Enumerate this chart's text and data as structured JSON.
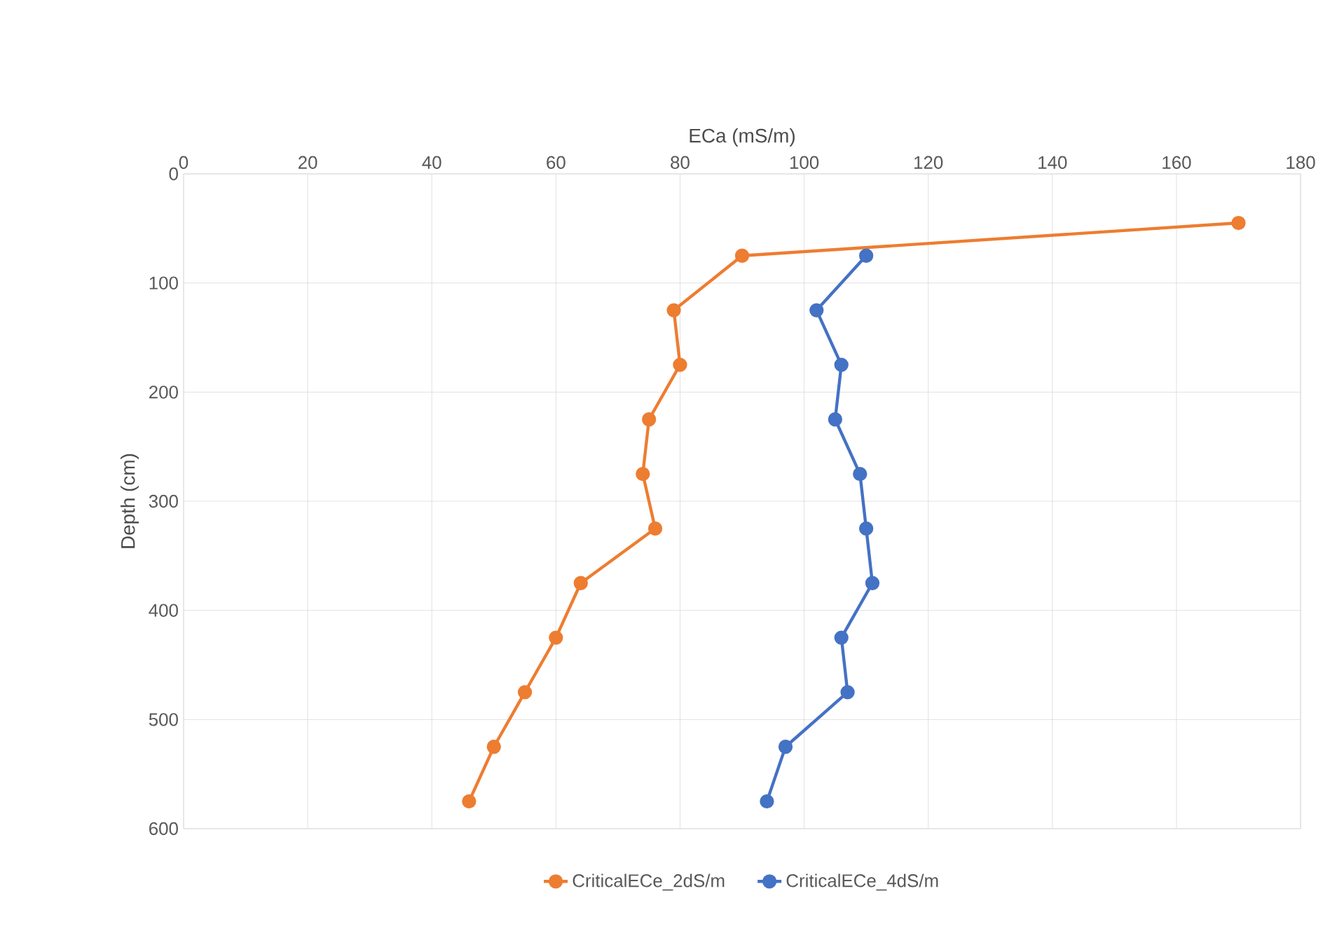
{
  "chart_data": {
    "type": "line",
    "xlabel": "ECa (mS/m)",
    "ylabel": "Depth (cm)",
    "xlim": [
      0,
      180
    ],
    "xticks": [
      0,
      20,
      40,
      60,
      80,
      100,
      120,
      140,
      160,
      180
    ],
    "ylim": [
      600,
      0
    ],
    "yticks": [
      0,
      100,
      200,
      300,
      400,
      500,
      600
    ],
    "grid": true,
    "legend": "bottom",
    "marker": "circle",
    "line_style": "solid",
    "series": [
      {
        "name": "CriticalECe_2dS/m",
        "color": "#ed7d31",
        "x": [
          170,
          90,
          79,
          80,
          75,
          74,
          76,
          64,
          60,
          55,
          50,
          46
        ],
        "values": [
          45,
          75,
          125,
          175,
          225,
          275,
          325,
          375,
          425,
          475,
          525,
          575
        ]
      },
      {
        "name": "CriticalECe_4dS/m",
        "color": "#4472c4",
        "x": [
          110,
          102,
          106,
          105,
          109,
          110,
          111,
          106,
          107,
          97,
          94
        ],
        "values": [
          75,
          125,
          175,
          225,
          275,
          325,
          375,
          425,
          475,
          525,
          575
        ]
      }
    ]
  }
}
